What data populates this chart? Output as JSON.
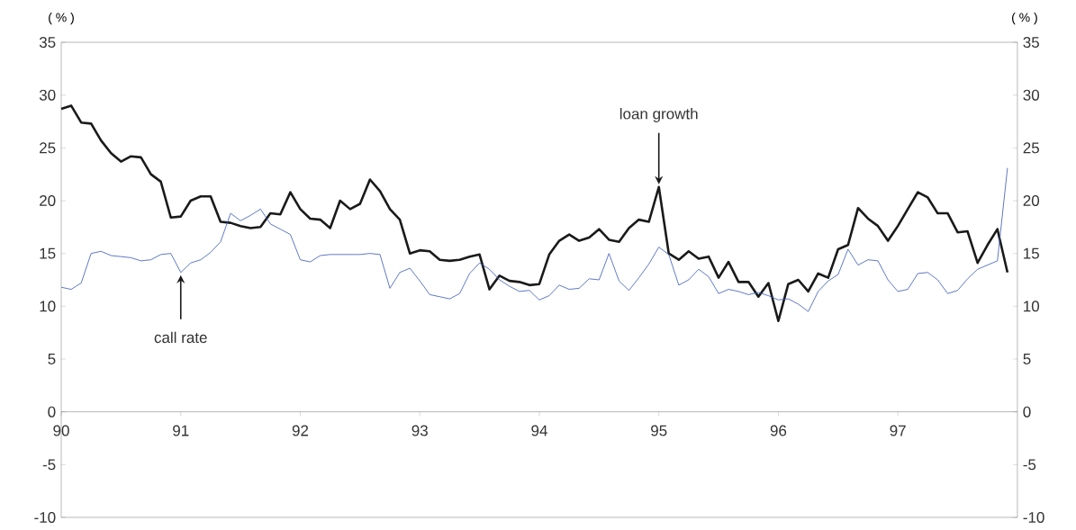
{
  "chart_data": {
    "type": "line",
    "ylabel": "( % )",
    "y2label": "( % )",
    "x": [
      90.0,
      90.083,
      90.167,
      90.25,
      90.333,
      90.417,
      90.5,
      90.583,
      90.667,
      90.75,
      90.833,
      90.917,
      91.0,
      91.083,
      91.167,
      91.25,
      91.333,
      91.417,
      91.5,
      91.583,
      91.667,
      91.75,
      91.833,
      91.917,
      92.0,
      92.083,
      92.167,
      92.25,
      92.333,
      92.417,
      92.5,
      92.583,
      92.667,
      92.75,
      92.833,
      92.917,
      93.0,
      93.083,
      93.167,
      93.25,
      93.333,
      93.417,
      93.5,
      93.583,
      93.667,
      93.75,
      93.833,
      93.917,
      94.0,
      94.083,
      94.167,
      94.25,
      94.333,
      94.417,
      94.5,
      94.583,
      94.667,
      94.75,
      94.833,
      94.917,
      95.0,
      95.083,
      95.167,
      95.25,
      95.333,
      95.417,
      95.5,
      95.583,
      95.667,
      95.75,
      95.833,
      95.917,
      96.0,
      96.083,
      96.167,
      96.25,
      96.333,
      96.417,
      96.5,
      96.583,
      96.667,
      96.75,
      96.833,
      96.917,
      97.0,
      97.083,
      97.167,
      97.25,
      97.333,
      97.417,
      97.5,
      97.583,
      97.667,
      97.75,
      97.833,
      97.917
    ],
    "series": [
      {
        "color": "#1a1a1a",
        "values": [
          28.7,
          29.0,
          27.4,
          27.3,
          25.7,
          24.5,
          23.7,
          24.2,
          24.1,
          22.5,
          21.8,
          18.4,
          18.5,
          20.0,
          20.4,
          20.4,
          18.0,
          17.9,
          17.6,
          17.4,
          17.5,
          18.8,
          18.7,
          20.8,
          19.2,
          18.3,
          18.2,
          17.4,
          20.0,
          19.2,
          19.7,
          22.0,
          20.9,
          19.2,
          18.2,
          15.0,
          15.3,
          15.2,
          14.4,
          14.3,
          14.4,
          14.7,
          14.9,
          11.6,
          12.9,
          12.4,
          12.3,
          12.0,
          12.1,
          14.9,
          16.2,
          16.8,
          16.2,
          16.5,
          17.3,
          16.3,
          16.1,
          17.4,
          18.2,
          18.0,
          21.3,
          15.0,
          14.4,
          15.2,
          14.5,
          14.7,
          12.7,
          14.2,
          12.3,
          12.3,
          10.9,
          12.2,
          8.6,
          12.1,
          12.5,
          11.4,
          13.1,
          12.7,
          15.4,
          15.8,
          19.3,
          18.3,
          17.6,
          16.2,
          17.6,
          19.2,
          20.8,
          20.3,
          18.8,
          18.8,
          17.0,
          17.1,
          14.1,
          15.8,
          17.3,
          13.2
        ]
      },
      {
        "color": "#3658b4",
        "values": [
          11.8,
          11.6,
          12.2,
          15.0,
          15.2,
          14.8,
          14.7,
          14.6,
          14.3,
          14.4,
          14.9,
          15.0,
          13.2,
          14.1,
          14.4,
          15.1,
          16.1,
          18.8,
          18.1,
          18.6,
          19.2,
          17.8,
          17.3,
          16.8,
          14.4,
          14.2,
          14.8,
          14.9,
          14.9,
          14.9,
          14.9,
          15.0,
          14.9,
          11.7,
          13.2,
          13.6,
          12.4,
          11.1,
          10.9,
          10.7,
          11.2,
          13.1,
          14.1,
          13.5,
          12.5,
          11.9,
          11.4,
          11.5,
          10.6,
          11.0,
          12.0,
          11.6,
          11.7,
          12.6,
          12.5,
          15.0,
          12.4,
          11.5,
          12.7,
          14.0,
          15.6,
          14.9,
          12.0,
          12.5,
          13.5,
          12.8,
          11.2,
          11.6,
          11.4,
          11.1,
          11.3,
          11.0,
          10.6,
          10.7,
          10.2,
          9.5,
          11.4,
          12.4,
          13.0,
          15.4,
          13.9,
          14.4,
          14.3,
          12.5,
          11.4,
          11.6,
          13.1,
          13.2,
          12.5,
          11.2,
          11.5,
          12.6,
          13.5,
          13.9,
          14.3,
          23.1
        ]
      }
    ],
    "xlim": [
      90,
      98
    ],
    "xticks": [
      90,
      91,
      92,
      93,
      94,
      95,
      96,
      97
    ],
    "ylim": [
      -10,
      35
    ],
    "yticks": [
      -10,
      -5,
      0,
      5,
      10,
      15,
      20,
      25,
      30,
      35
    ],
    "y2lim": [
      -10,
      35
    ],
    "y2ticks": [
      -10,
      -5,
      0,
      5,
      10,
      15,
      20,
      25,
      30,
      35
    ],
    "annotations": [
      {
        "text": "loan growth",
        "x": 95.0,
        "y": 21.3
      },
      {
        "text": "call rate",
        "x": 91.0,
        "y": 13.2
      }
    ],
    "grid": false,
    "marker": "none",
    "line_style": "solid"
  }
}
